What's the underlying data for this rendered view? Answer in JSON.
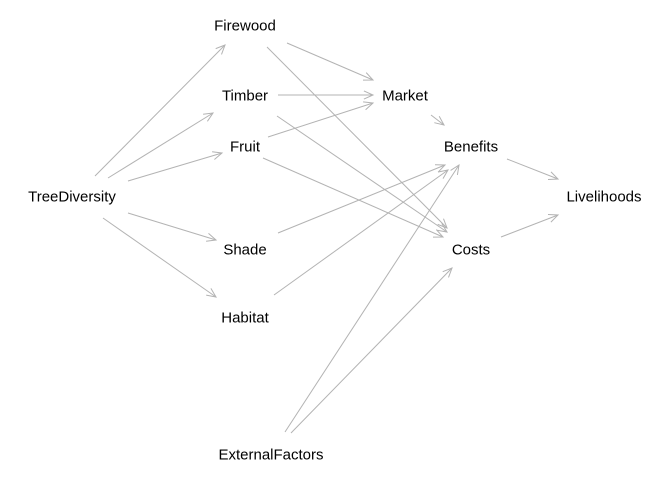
{
  "diagram": {
    "type": "directed-graph",
    "edge_color": "#b3b3b3",
    "text_color": "#000000",
    "background": "#ffffff",
    "nodes": [
      {
        "id": "firewood",
        "label": "Firewood"
      },
      {
        "id": "timber",
        "label": "Timber"
      },
      {
        "id": "fruit",
        "label": "Fruit"
      },
      {
        "id": "treediversity",
        "label": "TreeDiversity"
      },
      {
        "id": "shade",
        "label": "Shade"
      },
      {
        "id": "habitat",
        "label": "Habitat"
      },
      {
        "id": "market",
        "label": "Market"
      },
      {
        "id": "benefits",
        "label": "Benefits"
      },
      {
        "id": "costs",
        "label": "Costs"
      },
      {
        "id": "livelihoods",
        "label": "Livelihoods"
      },
      {
        "id": "externalfactors",
        "label": "ExternalFactors"
      }
    ],
    "edges": [
      {
        "from": "treediversity",
        "to": "firewood"
      },
      {
        "from": "treediversity",
        "to": "timber"
      },
      {
        "from": "treediversity",
        "to": "fruit"
      },
      {
        "from": "treediversity",
        "to": "shade"
      },
      {
        "from": "treediversity",
        "to": "habitat"
      },
      {
        "from": "firewood",
        "to": "market"
      },
      {
        "from": "firewood",
        "to": "costs"
      },
      {
        "from": "timber",
        "to": "market"
      },
      {
        "from": "timber",
        "to": "costs"
      },
      {
        "from": "fruit",
        "to": "market"
      },
      {
        "from": "fruit",
        "to": "costs"
      },
      {
        "from": "market",
        "to": "benefits"
      },
      {
        "from": "shade",
        "to": "benefits"
      },
      {
        "from": "habitat",
        "to": "benefits"
      },
      {
        "from": "externalfactors",
        "to": "benefits"
      },
      {
        "from": "externalfactors",
        "to": "costs"
      },
      {
        "from": "benefits",
        "to": "livelihoods"
      },
      {
        "from": "costs",
        "to": "livelihoods"
      }
    ]
  }
}
